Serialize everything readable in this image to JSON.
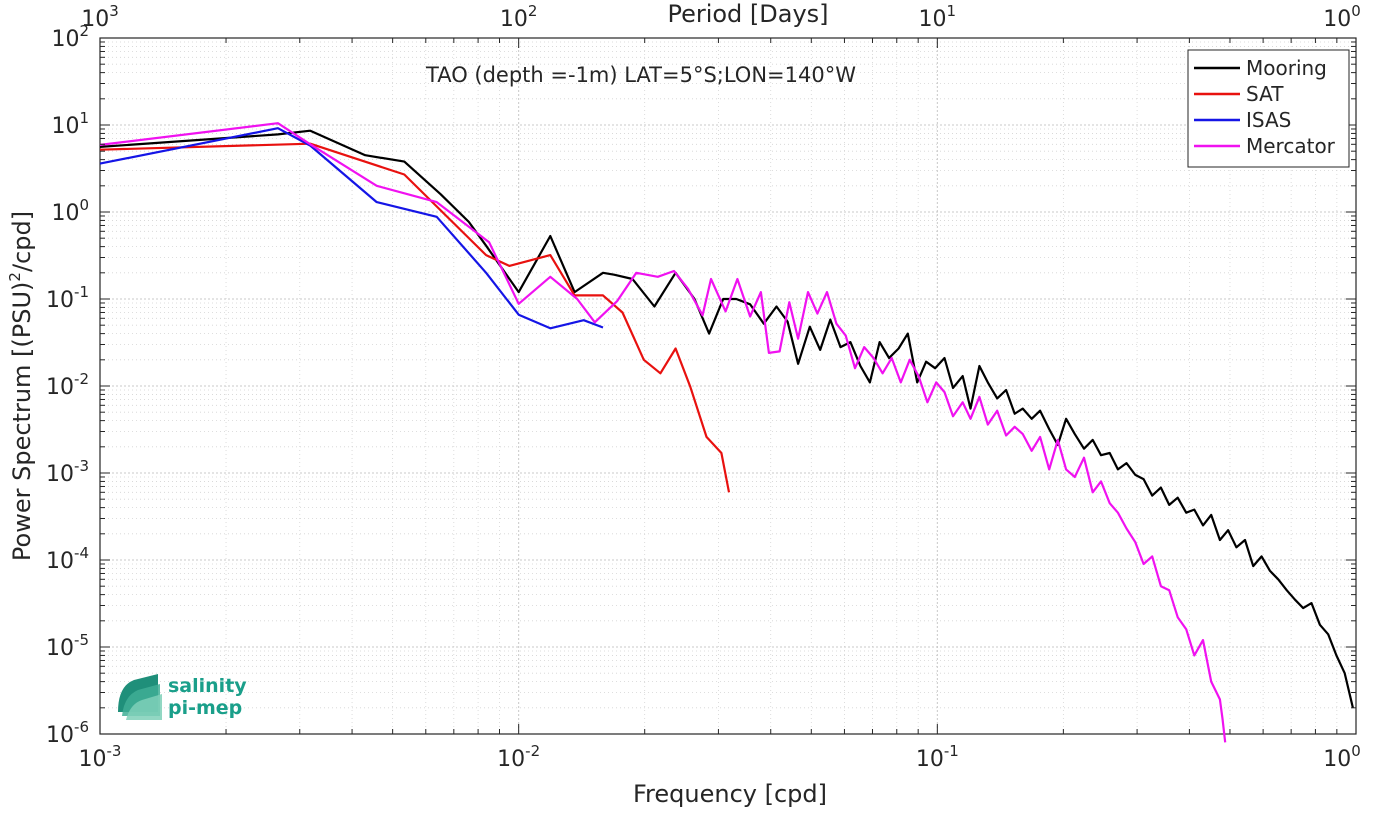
{
  "chart_data": {
    "type": "line",
    "title": "TAO (depth =-1m) LAT=5°S;LON=140°W",
    "xlabel": "Frequency [cpd]",
    "ylabel": "Power Spectrum [(PSU)",
    "ylabel_sup": "2",
    "ylabel_tail": "/cpd]",
    "x2label": "Period [Days]",
    "xscale": "log",
    "yscale": "log",
    "xlim": [
      0.001,
      1
    ],
    "ylim": [
      1e-06,
      100
    ],
    "grid": true,
    "legend_position": "top-right",
    "x_ticks": [
      {
        "base": "10",
        "exp": "-3",
        "value": 0.001
      },
      {
        "base": "10",
        "exp": "-2",
        "value": 0.01
      },
      {
        "base": "10",
        "exp": "-1",
        "value": 0.1
      },
      {
        "base": "10",
        "exp": "0",
        "value": 1
      }
    ],
    "x2_ticks": [
      {
        "base": "10",
        "exp": "3",
        "value": 0.001
      },
      {
        "base": "10",
        "exp": "2",
        "value": 0.01
      },
      {
        "base": "10",
        "exp": "1",
        "value": 0.1
      },
      {
        "base": "10",
        "exp": "0",
        "value": 1
      }
    ],
    "y_ticks": [
      {
        "base": "10",
        "exp": "2",
        "value": 100
      },
      {
        "base": "10",
        "exp": "1",
        "value": 10
      },
      {
        "base": "10",
        "exp": "0",
        "value": 1
      },
      {
        "base": "10",
        "exp": "-1",
        "value": 0.1
      },
      {
        "base": "10",
        "exp": "-2",
        "value": 0.01
      },
      {
        "base": "10",
        "exp": "-3",
        "value": 0.001
      },
      {
        "base": "10",
        "exp": "-4",
        "value": 0.0001
      },
      {
        "base": "10",
        "exp": "-5",
        "value": 1e-05
      },
      {
        "base": "10",
        "exp": "-6",
        "value": 1e-06
      }
    ],
    "series": [
      {
        "name": "Mooring",
        "color": "#000000",
        "x": [
          0.001,
          0.00266,
          0.00318,
          0.0043,
          0.00533,
          0.00651,
          0.0076,
          0.00836,
          0.01,
          0.0119,
          0.0136,
          0.0159,
          0.0169,
          0.0187,
          0.0211,
          0.0237,
          0.0263,
          0.0285,
          0.0308,
          0.0331,
          0.0357,
          0.0385,
          0.0413,
          0.0439,
          0.0465,
          0.0496,
          0.0525,
          0.0555,
          0.0587,
          0.062,
          0.0655,
          0.069,
          0.0728,
          0.0767,
          0.0808,
          0.085,
          0.0895,
          0.094,
          0.0988,
          0.104,
          0.109,
          0.115,
          0.12,
          0.126,
          0.132,
          0.139,
          0.146,
          0.153,
          0.16,
          0.168,
          0.176,
          0.185,
          0.194,
          0.203,
          0.213,
          0.224,
          0.235,
          0.246,
          0.258,
          0.27,
          0.283,
          0.297,
          0.311,
          0.326,
          0.342,
          0.358,
          0.375,
          0.393,
          0.411,
          0.431,
          0.451,
          0.473,
          0.495,
          0.518,
          0.543,
          0.568,
          0.595,
          0.623,
          0.652,
          0.683,
          0.715,
          0.748,
          0.783,
          0.82,
          0.858,
          0.898,
          0.94,
          0.983
        ],
        "y": [
          5.6,
          7.8,
          8.6,
          4.5,
          3.8,
          1.6,
          0.77,
          0.41,
          0.12,
          0.53,
          0.12,
          0.2,
          0.19,
          0.17,
          0.082,
          0.2,
          0.1,
          0.04,
          0.1,
          0.1,
          0.087,
          0.052,
          0.082,
          0.055,
          0.018,
          0.048,
          0.026,
          0.058,
          0.028,
          0.032,
          0.017,
          0.011,
          0.032,
          0.021,
          0.027,
          0.04,
          0.011,
          0.019,
          0.016,
          0.021,
          0.0095,
          0.013,
          0.0055,
          0.017,
          0.011,
          0.0072,
          0.009,
          0.0048,
          0.0055,
          0.0042,
          0.0052,
          0.0032,
          0.0021,
          0.0042,
          0.0028,
          0.0019,
          0.0024,
          0.0016,
          0.0017,
          0.0011,
          0.0013,
          0.00095,
          0.00085,
          0.00055,
          0.00068,
          0.00043,
          0.00052,
          0.00035,
          0.00038,
          0.00025,
          0.00033,
          0.00017,
          0.00022,
          0.00014,
          0.00017,
          8.5e-05,
          0.00011,
          7.5e-05,
          6e-05,
          4.5e-05,
          3.5e-05,
          2.8e-05,
          3.2e-05,
          1.8e-05,
          1.4e-05,
          8e-06,
          5e-06,
          2e-06
        ]
      },
      {
        "name": "SAT",
        "color": "#e8110f",
        "x": [
          0.001,
          0.00318,
          0.00533,
          0.00836,
          0.0095,
          0.0119,
          0.0136,
          0.0159,
          0.0177,
          0.0199,
          0.0218,
          0.0237,
          0.0257,
          0.0281,
          0.0305,
          0.0318
        ],
        "y": [
          5.2,
          6.1,
          2.7,
          0.32,
          0.24,
          0.32,
          0.11,
          0.11,
          0.07,
          0.02,
          0.014,
          0.027,
          0.0098,
          0.0026,
          0.0017,
          0.0006
        ]
      },
      {
        "name": "ISAS",
        "color": "#1515e6",
        "x": [
          0.001,
          0.00266,
          0.00318,
          0.00458,
          0.00637,
          0.00836,
          0.01,
          0.0119,
          0.0143,
          0.0159
        ],
        "y": [
          3.6,
          9.2,
          5.8,
          1.3,
          0.88,
          0.2,
          0.066,
          0.046,
          0.057,
          0.047
        ]
      },
      {
        "name": "Mercator",
        "color": "#f012f0",
        "x": [
          0.001,
          0.00266,
          0.00318,
          0.00458,
          0.00637,
          0.0085,
          0.01,
          0.0119,
          0.0138,
          0.0152,
          0.0172,
          0.0191,
          0.0215,
          0.0235,
          0.0254,
          0.0275,
          0.0288,
          0.0312,
          0.0333,
          0.0357,
          0.0379,
          0.0396,
          0.042,
          0.0443,
          0.0465,
          0.0491,
          0.0517,
          0.0545,
          0.0574,
          0.0604,
          0.0636,
          0.0669,
          0.0704,
          0.074,
          0.0778,
          0.0818,
          0.0859,
          0.0902,
          0.0947,
          0.0994,
          0.104,
          0.109,
          0.115,
          0.12,
          0.126,
          0.132,
          0.139,
          0.146,
          0.153,
          0.16,
          0.168,
          0.176,
          0.185,
          0.194,
          0.203,
          0.213,
          0.224,
          0.235,
          0.246,
          0.258,
          0.27,
          0.283,
          0.297,
          0.311,
          0.326,
          0.342,
          0.358,
          0.375,
          0.393,
          0.411,
          0.431,
          0.451,
          0.473,
          0.48,
          0.487
        ],
        "y": [
          5.9,
          10.5,
          6.0,
          2.0,
          1.3,
          0.45,
          0.088,
          0.18,
          0.1,
          0.054,
          0.095,
          0.2,
          0.18,
          0.21,
          0.13,
          0.065,
          0.17,
          0.072,
          0.17,
          0.063,
          0.12,
          0.024,
          0.025,
          0.092,
          0.035,
          0.12,
          0.068,
          0.12,
          0.052,
          0.038,
          0.016,
          0.028,
          0.021,
          0.014,
          0.021,
          0.011,
          0.02,
          0.013,
          0.0065,
          0.011,
          0.0085,
          0.0045,
          0.0065,
          0.0042,
          0.0075,
          0.0036,
          0.0052,
          0.0027,
          0.0034,
          0.0028,
          0.0018,
          0.0026,
          0.0011,
          0.0024,
          0.0011,
          0.0009,
          0.0015,
          0.0006,
          0.0008,
          0.00045,
          0.00035,
          0.00023,
          0.00016,
          9e-05,
          0.00011,
          5e-05,
          4.5e-05,
          2.2e-05,
          1.6e-05,
          8e-06,
          1.2e-05,
          4e-06,
          2.5e-06,
          1.5e-06,
          8e-07
        ]
      }
    ]
  },
  "logo": {
    "line1": "salinity",
    "line2": "pi-mep",
    "color": "#1a9f8a"
  }
}
